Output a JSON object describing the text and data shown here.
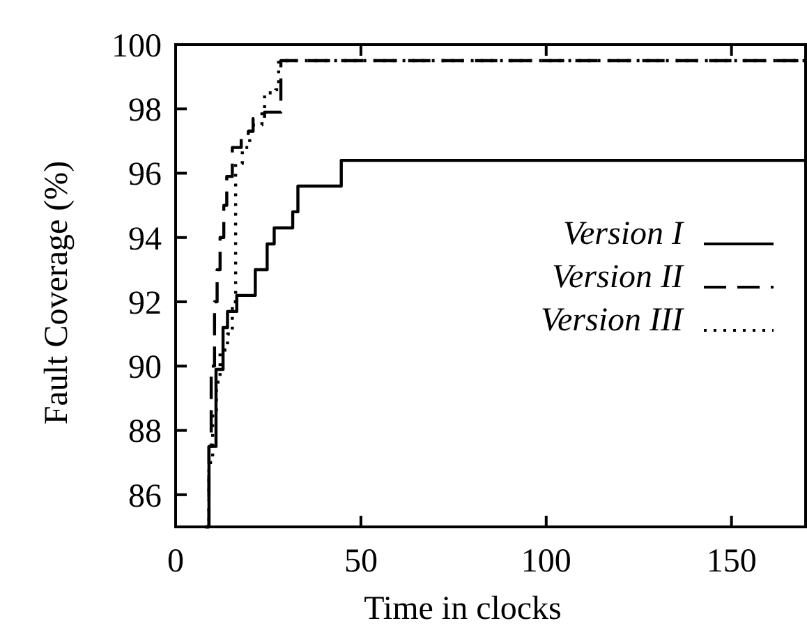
{
  "chart_data": {
    "type": "step",
    "xlabel": "Time in clocks",
    "ylabel": "Fault Coverage (%)",
    "xlim": [
      0,
      170
    ],
    "xticks": [
      0,
      50,
      100,
      150
    ],
    "ylim": [
      85,
      100
    ],
    "yticks": [
      86,
      88,
      90,
      92,
      94,
      96,
      98,
      100
    ],
    "legend": "right",
    "grid": false,
    "series": [
      {
        "name": "Version I",
        "color": "#000000",
        "line_style": "solid",
        "x": [
          8.5,
          9,
          10.9,
          12.8,
          14,
          16.5,
          21.5,
          24.7,
          26.6,
          31.6,
          33,
          44.7,
          170
        ],
        "values": [
          85,
          87.5,
          89.9,
          91.2,
          91.7,
          92.2,
          93,
          93.8,
          94.3,
          94.8,
          95.6,
          96.4,
          96.4
        ]
      },
      {
        "name": "Version II",
        "color": "#000000",
        "line_style": "dashed",
        "x": [
          8,
          9,
          9.6,
          10.5,
          11.2,
          12,
          13,
          13.8,
          15.3,
          17.7,
          19.6,
          20.9,
          24,
          28.4,
          170
        ],
        "values": [
          85,
          87.5,
          90,
          92,
          93,
          94,
          95,
          95.9,
          96.8,
          97.1,
          97.3,
          97.7,
          97.9,
          99.5,
          99.5
        ]
      },
      {
        "name": "Version III",
        "color": "#000000",
        "line_style": "dotted",
        "x": [
          8,
          9,
          10,
          11,
          12,
          14,
          15.3,
          16.2,
          18,
          20,
          23.3,
          24,
          27,
          27.8,
          170
        ],
        "values": [
          85,
          87,
          88.5,
          89.5,
          90.5,
          91,
          92,
          96.3,
          96.8,
          97.5,
          97.9,
          98.5,
          98.6,
          99.5,
          99.5
        ]
      }
    ]
  }
}
